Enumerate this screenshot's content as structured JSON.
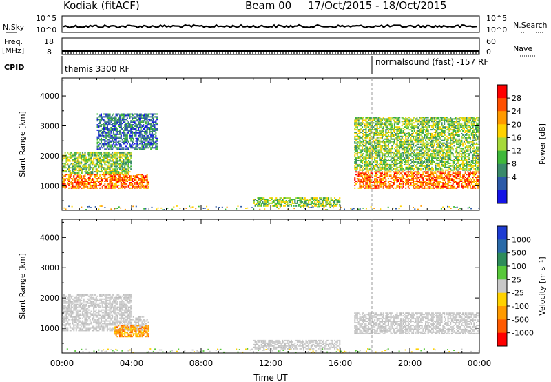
{
  "header": {
    "radar": "Kodiak (fitACF)",
    "beam": "Beam 00",
    "dates": "17/Oct/2015 - 18/Oct/2015"
  },
  "strips": {
    "nsky_label": "N.Sky",
    "nsky_ticks": [
      "10^5",
      "10^0"
    ],
    "nsearch_label": "N.Search",
    "nsearch_ticks": [
      "10^5",
      "10^0"
    ],
    "freq_label_1": "Freq.",
    "freq_label_2": "[MHz]",
    "freq_ticks": [
      "18",
      "8"
    ],
    "nave_label": "Nave",
    "nave_ticks": [
      "60",
      "0"
    ],
    "cpid_label": "CPID",
    "cpid_left": "themis 3300 RF",
    "cpid_right": "normalsound (fast) -157 RF"
  },
  "chart_data": [
    {
      "type": "heatmap",
      "name": "power",
      "ylabel": "Slant Range [km]",
      "xlabel": "Time UT",
      "x_range_hours": [
        0,
        24
      ],
      "ylim": [
        180,
        4600
      ],
      "y_ticks": [
        1000,
        2000,
        3000,
        4000
      ],
      "x_ticks": [
        "00:00",
        "04:00",
        "08:00",
        "12:00",
        "16:00",
        "20:00",
        "00:00"
      ],
      "colorbar": {
        "label": "Power [dB]",
        "ticks": [
          "28",
          "24",
          "20",
          "16",
          "12",
          "8",
          "4"
        ],
        "colors": [
          "#ff0000",
          "#ff5000",
          "#ff9a00",
          "#ffd200",
          "#a6d93a",
          "#3fb83a",
          "#3a8a6a",
          "#2c5aa8",
          "#1414e6"
        ]
      },
      "regions": [
        {
          "t": [
            0.0,
            5.0
          ],
          "r": [
            900,
            1400
          ],
          "level": "high"
        },
        {
          "t": [
            0.0,
            4.0
          ],
          "r": [
            1400,
            2100
          ],
          "level": "mid"
        },
        {
          "t": [
            2.0,
            5.5
          ],
          "r": [
            2200,
            3400
          ],
          "level": "low"
        },
        {
          "t": [
            11.0,
            16.0
          ],
          "r": [
            300,
            600
          ],
          "level": "mid"
        },
        {
          "t": [
            16.8,
            24.0
          ],
          "r": [
            900,
            1500
          ],
          "level": "high"
        },
        {
          "t": [
            16.8,
            24.0
          ],
          "r": [
            1500,
            3300
          ],
          "level": "mid"
        }
      ]
    },
    {
      "type": "heatmap",
      "name": "velocity",
      "ylabel": "Slant Range [km]",
      "xlabel": "Time UT",
      "x_range_hours": [
        0,
        24
      ],
      "ylim": [
        180,
        4600
      ],
      "y_ticks": [
        1000,
        2000,
        3000,
        4000
      ],
      "x_ticks": [
        "00:00",
        "04:00",
        "08:00",
        "12:00",
        "16:00",
        "20:00",
        "00:00"
      ],
      "colorbar": {
        "label": "Velocity [m s⁻¹]",
        "ticks": [
          "1000",
          "500",
          "100",
          "25",
          "-25",
          "-100",
          "-500",
          "-1000"
        ],
        "colors": [
          "#1e3cd2",
          "#2a6aa8",
          "#2e8c5a",
          "#58c83a",
          "#c8c8c8",
          "#ffd200",
          "#ff9a00",
          "#ff5a00",
          "#ff0000"
        ]
      },
      "regions": [
        {
          "t": [
            0.0,
            5.0
          ],
          "r": [
            900,
            1400
          ],
          "level": "gray"
        },
        {
          "t": [
            0.0,
            4.0
          ],
          "r": [
            1400,
            2100
          ],
          "level": "gray"
        },
        {
          "t": [
            3.0,
            5.0
          ],
          "r": [
            700,
            1100
          ],
          "level": "orange"
        },
        {
          "t": [
            11.0,
            16.0
          ],
          "r": [
            300,
            600
          ],
          "level": "gray"
        },
        {
          "t": [
            16.8,
            24.0
          ],
          "r": [
            800,
            1500
          ],
          "level": "gray"
        }
      ]
    }
  ]
}
